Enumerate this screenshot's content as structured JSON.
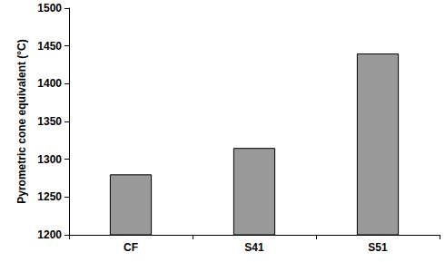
{
  "chart_data": {
    "type": "bar",
    "y_label": "Pyrometric cone equivalent (°C)",
    "categories": [
      "CF",
      "S41",
      "S51"
    ],
    "values": [
      1280,
      1315,
      1440
    ],
    "color": "#999999",
    "ylim": [
      1200,
      1500
    ],
    "yticks": [
      1200,
      1250,
      1300,
      1350,
      1400,
      1450,
      1500
    ],
    "grid": false
  }
}
